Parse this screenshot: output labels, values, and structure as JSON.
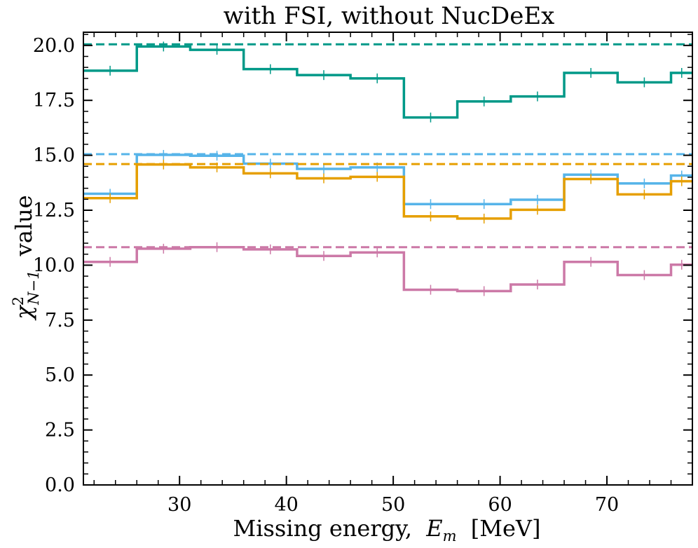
{
  "chart_data": {
    "type": "step",
    "title": "with FSI, without NucDeEx",
    "xlabel": "Missing energy, E_m [MeV]",
    "xlabel_text": "Missing energy,",
    "xlabel_var": "E",
    "xlabel_sub": "m",
    "xlabel_unit": "[MeV]",
    "ylabel": "χ²_{N−1} value",
    "ylabel_var": "χ",
    "ylabel_sup": "2",
    "ylabel_sub": "N−1",
    "ylabel_text": "value",
    "xlim": [
      21,
      78
    ],
    "ylim": [
      0,
      20.6
    ],
    "xticks": [
      30,
      40,
      50,
      60,
      70
    ],
    "xtick_labels": [
      "30",
      "40",
      "50",
      "60",
      "70"
    ],
    "yticks": [
      0,
      2.5,
      5,
      7.5,
      10,
      12.5,
      15,
      17.5,
      20
    ],
    "ytick_labels": [
      "0.0",
      "2.5",
      "5.0",
      "7.5",
      "10.0",
      "12.5",
      "15.0",
      "17.5",
      "20.0"
    ],
    "bin_edges": [
      21,
      26,
      31,
      36,
      41,
      46,
      51,
      56,
      61,
      66,
      71,
      76,
      78
    ],
    "series": [
      {
        "name": "teal",
        "color": "#009988",
        "values": [
          18.85,
          19.95,
          19.8,
          18.92,
          18.65,
          18.5,
          16.72,
          17.45,
          17.68,
          18.75,
          18.32,
          18.75
        ],
        "reference": 20.05
      },
      {
        "name": "blue",
        "color": "#56b4e9",
        "values": [
          13.25,
          15.02,
          14.98,
          14.62,
          14.38,
          14.45,
          12.78,
          12.78,
          12.98,
          14.12,
          13.72,
          14.08
        ],
        "reference": 15.05
      },
      {
        "name": "orange",
        "color": "#e69f00",
        "values": [
          13.05,
          14.58,
          14.45,
          14.18,
          13.95,
          14.02,
          12.22,
          12.12,
          12.52,
          13.92,
          13.22,
          13.82
        ],
        "reference": 14.6
      },
      {
        "name": "pink",
        "color": "#cc79a7",
        "values": [
          10.15,
          10.75,
          10.82,
          10.72,
          10.42,
          10.58,
          8.88,
          8.82,
          9.12,
          10.15,
          9.55,
          10.02
        ],
        "reference": 10.82
      }
    ]
  }
}
